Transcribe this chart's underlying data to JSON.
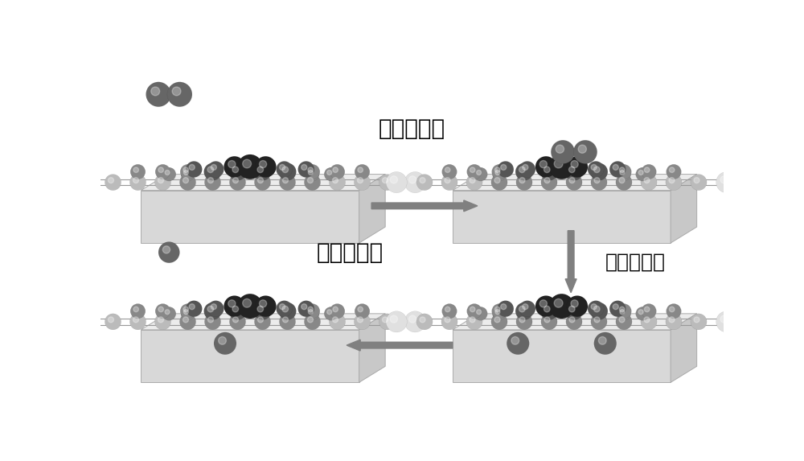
{
  "bg_color": "#ffffff",
  "arrow_color": "#808080",
  "text_color": "#000000",
  "label1": "氢分子扩散",
  "label2": "氢分子解离",
  "label3": "氢原子扩散",
  "font_size": 20,
  "slab_top": "#ececec",
  "slab_front": "#d8d8d8",
  "slab_side": "#c8c8c8",
  "atom_dark": "#222222",
  "atom_medium_dark": "#555555",
  "atom_medium": "#888888",
  "atom_light": "#bbbbbb",
  "atom_white": "#e0e0e0",
  "atom_h2": "#666666"
}
